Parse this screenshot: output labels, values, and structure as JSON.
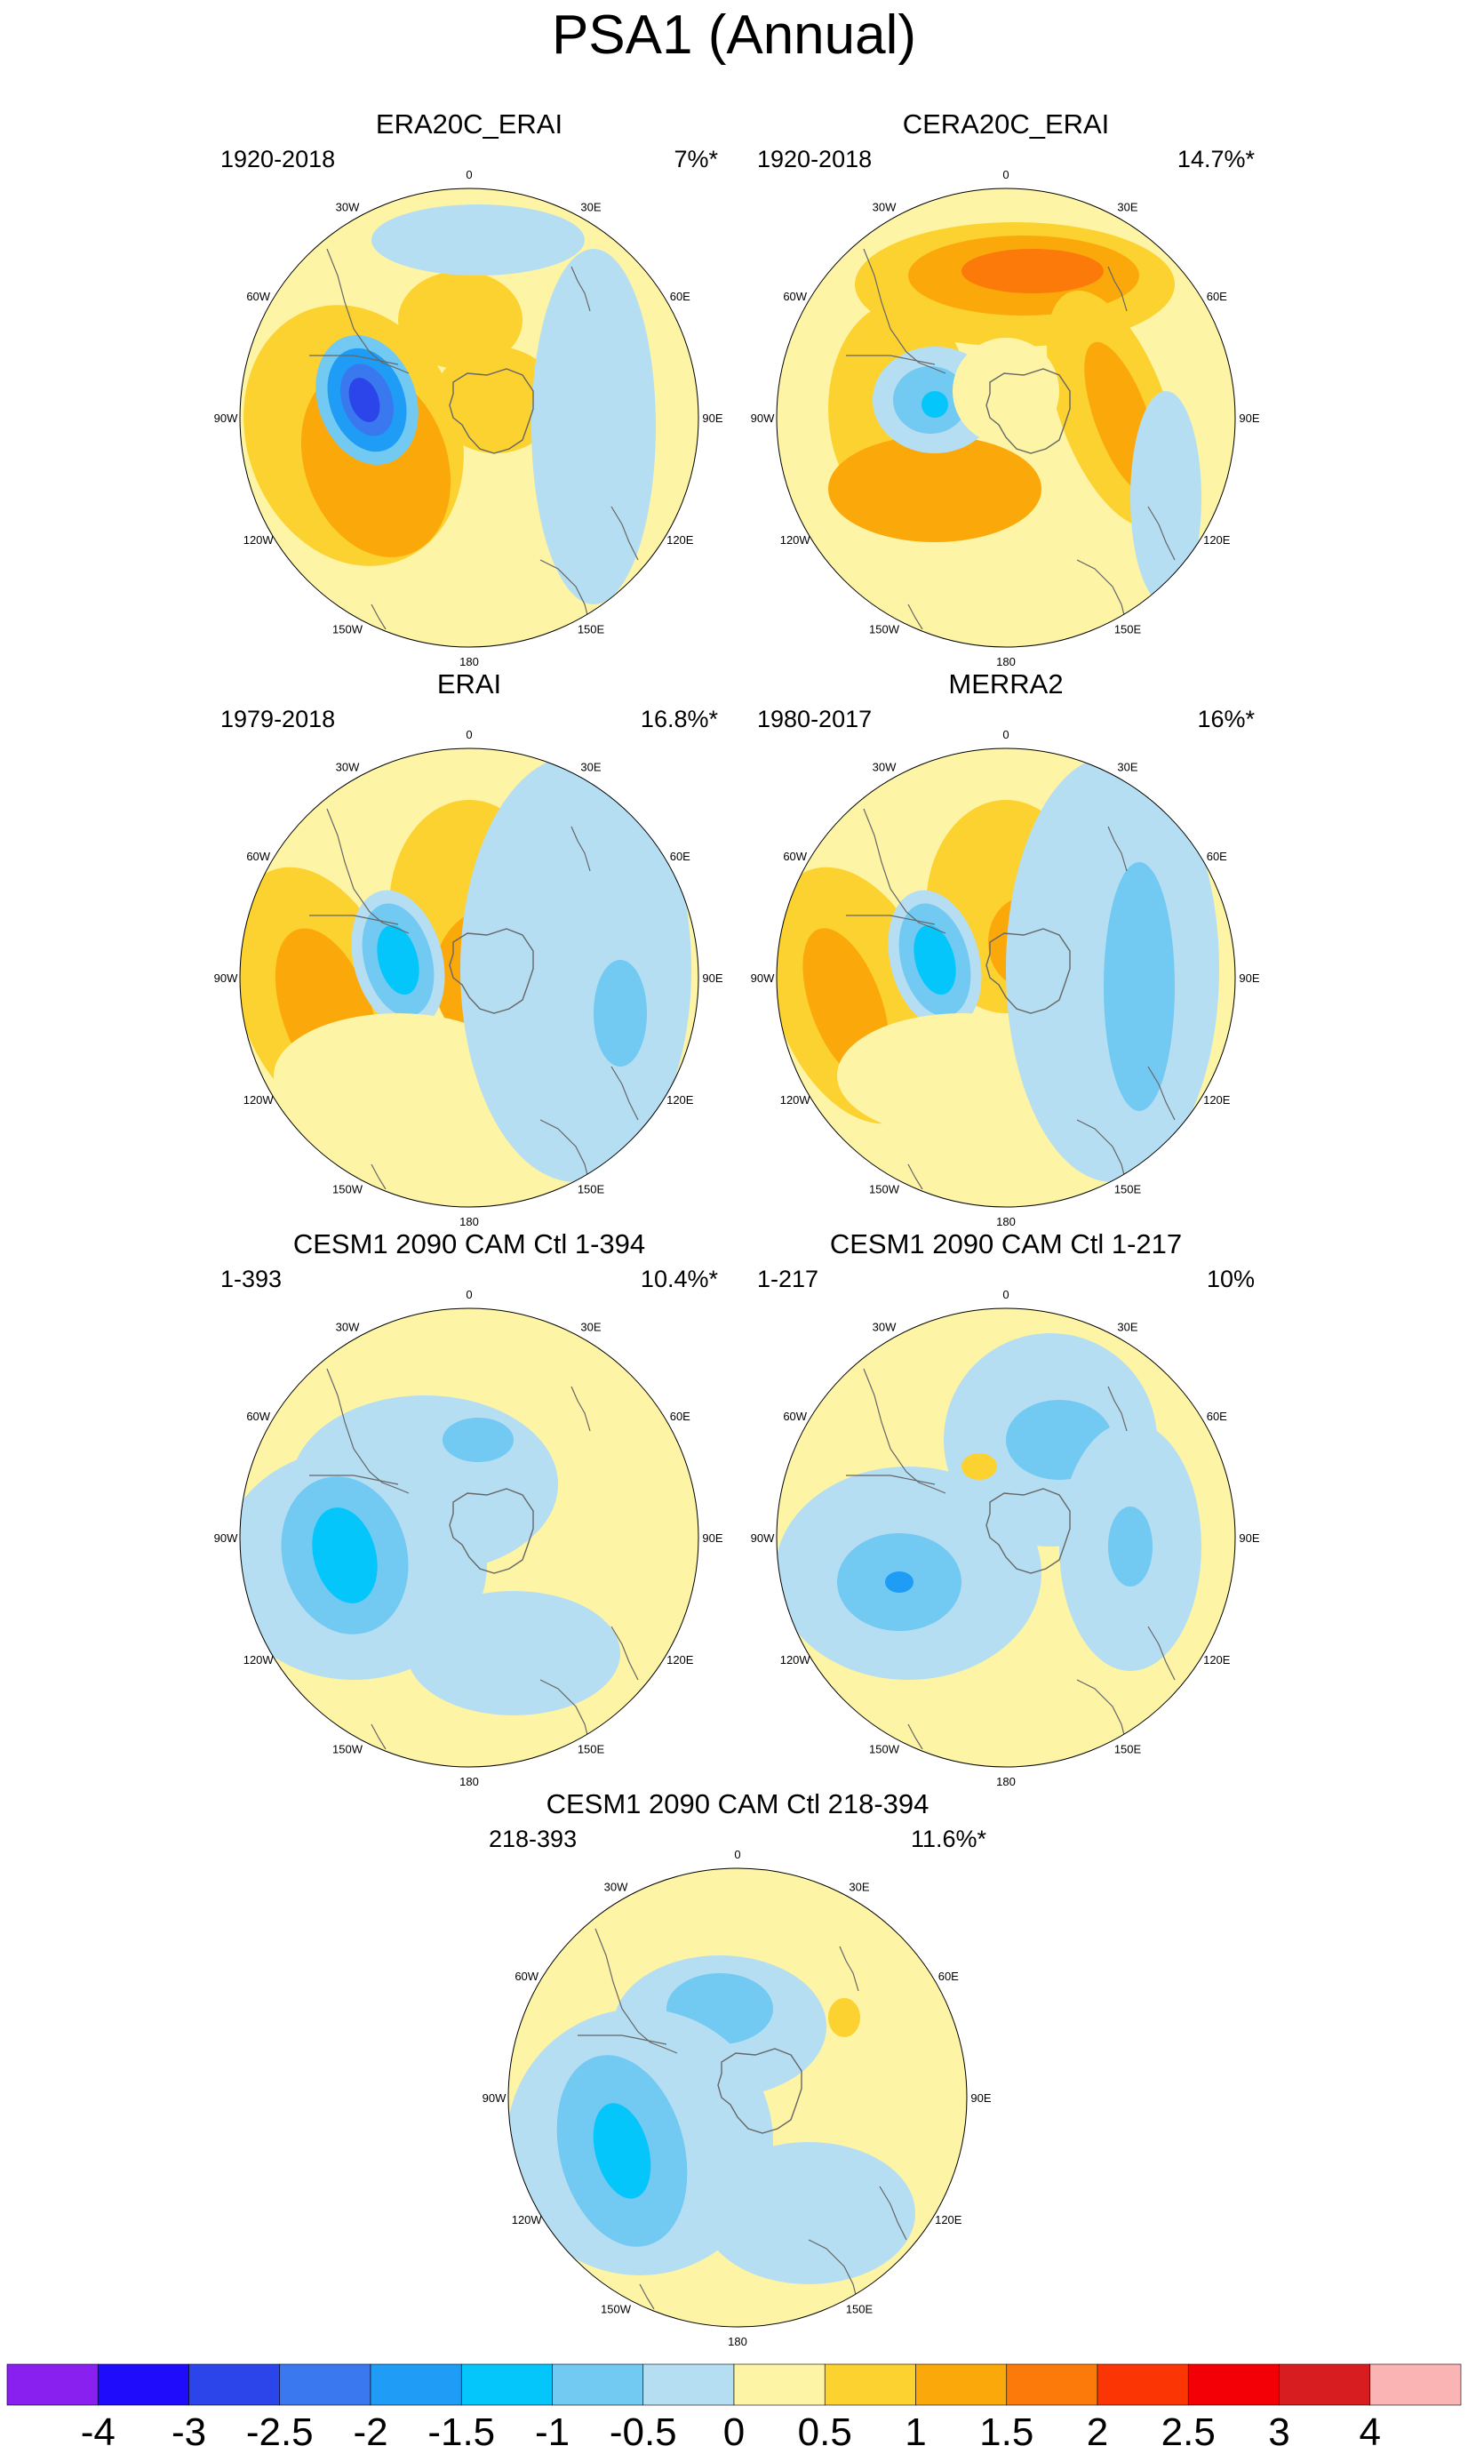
{
  "title": "PSA1 (Annual)",
  "panels": [
    {
      "id": "era20c",
      "title": "ERA20C_ERAI",
      "period": "1920-2018",
      "pct": "7%*"
    },
    {
      "id": "cera20c",
      "title": "CERA20C_ERAI",
      "period": "1920-2018",
      "pct": "14.7%*"
    },
    {
      "id": "erai",
      "title": "ERAI",
      "period": "1979-2018",
      "pct": "16.8%*"
    },
    {
      "id": "merra2",
      "title": "MERRA2",
      "period": "1980-2017",
      "pct": "16%*"
    },
    {
      "id": "cesm-all",
      "title": "CESM1 2090 CAM Ctl 1-394",
      "period": "1-393",
      "pct": "10.4%*"
    },
    {
      "id": "cesm-first",
      "title": "CESM1 2090 CAM Ctl 1-217",
      "period": "1-217",
      "pct": "10%"
    },
    {
      "id": "cesm-second",
      "title": "CESM1 2090 CAM Ctl 218-394",
      "period": "218-393",
      "pct": "11.6%*"
    }
  ],
  "lon_labels": [
    "0",
    "30E",
    "60E",
    "90E",
    "120E",
    "150E",
    "180",
    "150W",
    "120W",
    "90W",
    "60W",
    "30W"
  ],
  "colorbar": {
    "labels": [
      "-4",
      "-3",
      "-2.5",
      "-2",
      "-1.5",
      "-1",
      "-0.5",
      "0",
      "0.5",
      "1",
      "1.5",
      "2",
      "2.5",
      "3",
      "4"
    ],
    "colors": [
      "#8a20f0",
      "#1f0cfa",
      "#2c45ea",
      "#3a78ef",
      "#1f9cf5",
      "#05c6fb",
      "#72c9f2",
      "#b5def2",
      "#fdf4a5",
      "#fcd230",
      "#fba80b",
      "#fb7a0a",
      "#fb3504",
      "#f20006",
      "#d71d1f",
      "#fbb4b4"
    ]
  }
}
